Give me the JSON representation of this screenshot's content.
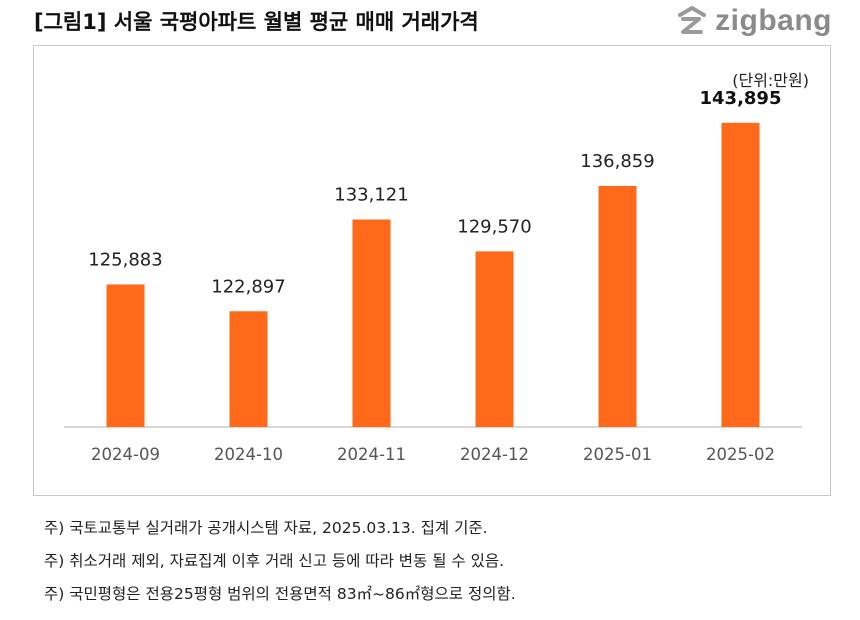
{
  "header": {
    "title": "[그림1] 서울  국평아파트 월별 평균 매매 거래가격",
    "brand": "zigbang",
    "brand_icon": "zigbang-logo-icon"
  },
  "colors": {
    "bar": "#ff6a1a",
    "axis": "#bfbfbf",
    "logo": "#8a8a8a"
  },
  "chart_data": {
    "type": "bar",
    "unit_label": "(단위:만원)",
    "categories": [
      "2024-09",
      "2024-10",
      "2024-11",
      "2024-12",
      "2025-01",
      "2025-02"
    ],
    "values": [
      125883,
      122897,
      133121,
      129570,
      136859,
      143895
    ],
    "value_labels": [
      "125,883",
      "122,897",
      "133,121",
      "129,570",
      "136,859",
      "143,895"
    ],
    "highlight_last_label_bold": true,
    "ylim": [
      110000,
      148000
    ],
    "grid": false,
    "legend": "none"
  },
  "notes": [
    "주) 국토교통부 실거래가 공개시스템 자료, 2025.03.13. 집계 기준.",
    "주) 취소거래 제외, 자료집계 이후 거래 신고 등에 따라 변동 될 수 있음.",
    "주) 국민평형은 전용25평형 범위의 전용면적 83㎡~86㎡형으로 정의함."
  ]
}
